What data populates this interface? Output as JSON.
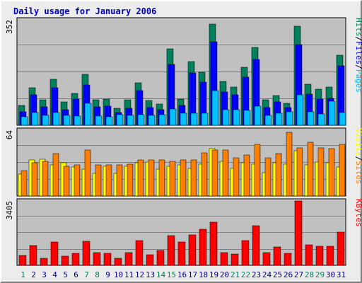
{
  "chart_data": {
    "type": "bar",
    "title": "Daily usage for January 2006",
    "categories": [
      "1",
      "2",
      "3",
      "4",
      "5",
      "6",
      "7",
      "8",
      "9",
      "10",
      "11",
      "12",
      "13",
      "14",
      "15",
      "16",
      "17",
      "18",
      "19",
      "20",
      "21",
      "22",
      "23",
      "24",
      "25",
      "26",
      "27",
      "28",
      "29",
      "30",
      "31"
    ],
    "weekend_days": [
      1,
      7,
      8,
      14,
      15,
      21,
      22,
      28,
      29
    ],
    "colors": {
      "title": "#0000c0",
      "hits": "#00805c",
      "files": "#0000ff",
      "pages": "#00c0ff",
      "visits": "#ffff00",
      "sites": "#ff8000",
      "kbytes": "#ff0000",
      "weekend": "#00805c",
      "weekday": "#000080",
      "plot_bg": "#c0c0c0",
      "gridline": "#808080"
    },
    "panels": [
      {
        "key": "hits",
        "ymax_label": "352",
        "ymax": 352,
        "legend": [
          "Pages",
          "/",
          "Files",
          "/",
          "Hits"
        ],
        "legend_colors": [
          "#00c0ff",
          "#000000",
          "#0000ff",
          "#000000",
          "#00805c"
        ],
        "series": [
          {
            "name": "Hits",
            "values": [
              65,
              125,
              86,
              154,
              78,
              107,
              170,
              85,
              87,
              56,
              84,
              142,
              83,
              72,
              255,
              88,
              213,
              177,
              338,
              147,
              127,
              193,
              261,
              85,
              99,
              73,
              331,
              136,
              121,
              128,
              235
            ]
          },
          {
            "name": "Files",
            "values": [
              46,
              101,
              61,
              125,
              52,
              87,
              134,
              61,
              64,
              43,
              57,
              115,
              59,
              52,
              204,
              66,
              174,
              145,
              279,
              112,
              101,
              160,
              219,
              59,
              78,
              60,
              270,
              105,
              88,
              89,
              199
            ]
          },
          {
            "name": "Pages",
            "values": [
              29,
              43,
              34,
              43,
              34,
              30,
              73,
              30,
              28,
              35,
              32,
              36,
              33,
              35,
              54,
              39,
              41,
              40,
              116,
              53,
              51,
              49,
              63,
              34,
              40,
              44,
              101,
              44,
              38,
              80,
              43
            ]
          }
        ]
      },
      {
        "key": "visits",
        "ymax_label": "64",
        "ymax": 64,
        "legend": [
          "Sites",
          "/",
          "Visits"
        ],
        "legend_colors": [
          "#ff8000",
          "#000000",
          "#ffff00"
        ],
        "series": [
          {
            "name": "Visits",
            "values": [
              21,
              35,
              36,
              30,
              32,
              28,
              26,
              22,
              29,
              22,
              29,
              32,
              33,
              26,
              29,
              30,
              27,
              31,
              46,
              34,
              27,
              32,
              31,
              23,
              32,
              31,
              44,
              30,
              33,
              32,
              28
            ]
          },
          {
            "name": "Sites",
            "values": [
              25,
              32,
              34,
              41,
              29,
              30,
              45,
              30,
              30,
              30,
              31,
              35,
              35,
              35,
              34,
              35,
              35,
              42,
              45,
              45,
              37,
              40,
              50,
              37,
              41,
              62,
              47,
              52,
              47,
              46,
              50
            ]
          }
        ]
      },
      {
        "key": "kbytes",
        "ymax_label": "3405",
        "ymax": 3405,
        "legend": [
          "KBytes"
        ],
        "legend_colors": [
          "#ff0000"
        ],
        "series": [
          {
            "name": "KBytes",
            "values": [
              527,
              1033,
              386,
              1247,
              491,
              629,
              1259,
              661,
              633,
              386,
              688,
              1321,
              564,
              777,
              1557,
              1225,
              1597,
              1895,
              2283,
              682,
              597,
              1317,
              2096,
              677,
              980,
              654,
              3405,
              1079,
              1010,
              1018,
              1752
            ]
          }
        ]
      }
    ]
  }
}
